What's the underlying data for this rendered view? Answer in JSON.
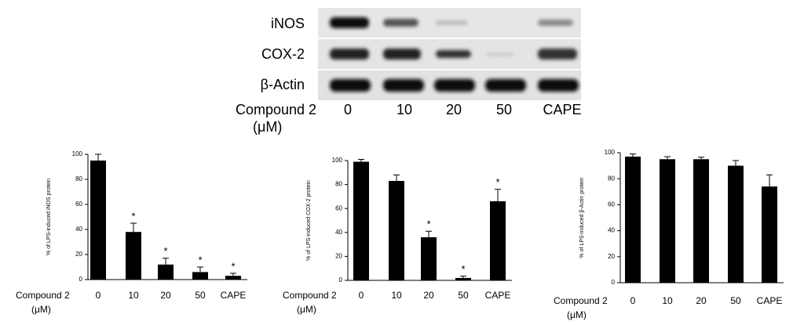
{
  "blot": {
    "rows": [
      "iNOS",
      "COX-2",
      "β-Actin"
    ],
    "x_label": "Compound 2",
    "x_unit": "(μM)",
    "lanes": [
      "0",
      "10",
      "20",
      "50",
      "CAPE"
    ]
  },
  "chart_data": [
    {
      "type": "bar",
      "y_label": "% of LPS-induced iNOS protein",
      "x_label": "Compound 2",
      "x_unit": "(μM)",
      "categories": [
        "0",
        "10",
        "20",
        "50",
        "CAPE"
      ],
      "values": [
        95,
        38,
        12,
        6,
        3
      ],
      "errors": [
        5,
        7,
        5,
        4,
        2
      ],
      "significance": [
        null,
        "*",
        "*",
        "*",
        "*"
      ],
      "color": "#000000",
      "ylim": [
        0,
        100
      ],
      "yticks": [
        0,
        20,
        40,
        60,
        80,
        100
      ]
    },
    {
      "type": "bar",
      "y_label": "% of LPS-induced COX-2 protein",
      "x_label": "Compound 2",
      "x_unit": "(μM)",
      "categories": [
        "0",
        "10",
        "20",
        "50",
        "CAPE"
      ],
      "values": [
        99,
        83,
        36,
        2,
        66
      ],
      "errors": [
        2,
        5,
        5,
        1.5,
        10
      ],
      "significance": [
        null,
        null,
        "*",
        "*",
        "*"
      ],
      "color": "#000000",
      "ylim": [
        0,
        100
      ],
      "yticks": [
        0,
        20,
        40,
        60,
        80,
        100
      ]
    },
    {
      "type": "bar",
      "y_label": "% of LPS-induced β-Actin protein",
      "x_label": "Compound 2",
      "x_unit": "(μM)",
      "categories": [
        "0",
        "10",
        "20",
        "50",
        "CAPE"
      ],
      "values": [
        97,
        95,
        95,
        90,
        74
      ],
      "errors": [
        2,
        2,
        1.5,
        4,
        9
      ],
      "significance": [
        null,
        null,
        null,
        null,
        null
      ],
      "color": "#000000",
      "ylim": [
        0,
        100
      ],
      "yticks": [
        0,
        20,
        40,
        60,
        80,
        100
      ]
    }
  ]
}
